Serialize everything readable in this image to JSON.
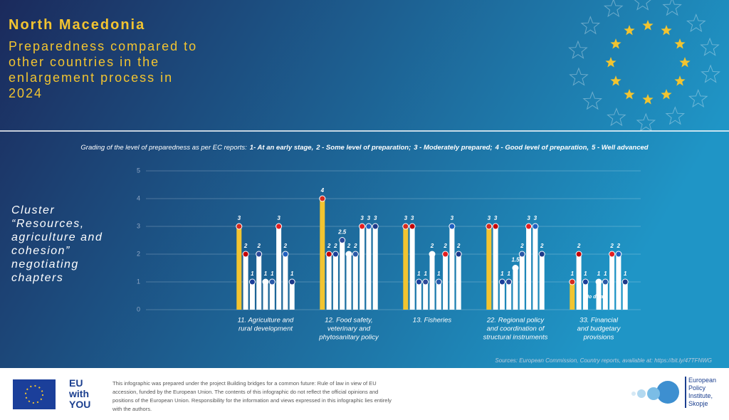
{
  "chart_data": {
    "type": "bar",
    "title": "North Macedonia",
    "subtitle": "Preparedness compared to other countries in the enlargement process in 2024",
    "grading_intro": "Grading of the level of preparedness as per EC reports:",
    "grades": [
      "1- At an early stage,",
      "2 - Some level of preparation;",
      "3 - Moderately prepared;",
      "4 - Good level of preparation,",
      "5 - Well advanced"
    ],
    "y_label": "Cluster “Resources, agriculture and cohesion” negotiating chapters",
    "categories": [
      [
        "11. Agriculture and",
        "rural development"
      ],
      [
        "12. Food safety,",
        "veterinary and",
        "phytosanitary policy"
      ],
      [
        "13. Fisheries"
      ],
      [
        "22. Regional policy",
        "and coordination of",
        "structural instruments"
      ],
      [
        "33. Financial",
        "and budgetary",
        "provisions"
      ]
    ],
    "series": [
      {
        "color": "#f2c430",
        "values": [
          3,
          4,
          3,
          3,
          1
        ]
      },
      {
        "color": "#ffffff",
        "values": [
          2,
          2,
          3,
          3,
          2
        ]
      },
      {
        "color": "#ffffff",
        "values": [
          1,
          2,
          1,
          1,
          1
        ]
      },
      {
        "color": "#ffffff",
        "values": [
          2,
          2.5,
          1,
          1,
          null
        ]
      },
      {
        "color": "#ffffff",
        "values": [
          1,
          2,
          2,
          1.5,
          1
        ]
      },
      {
        "color": "#ffffff",
        "values": [
          1,
          2,
          1,
          2,
          1
        ]
      },
      {
        "color": "#ffffff",
        "values": [
          3,
          3,
          2,
          3,
          2
        ]
      },
      {
        "color": "#ffffff",
        "values": [
          2,
          3,
          3,
          3,
          2
        ]
      },
      {
        "color": "#ffffff",
        "values": [
          1,
          3,
          2,
          2,
          1
        ]
      }
    ],
    "annotations": [
      "No data"
    ],
    "ylim": [
      0,
      5
    ],
    "yticks": [
      0,
      1,
      2,
      3,
      4,
      5
    ],
    "grid": true,
    "sources": "Sources: European Commission, Country reports, available at: https://bit.ly/47TFNWG"
  },
  "footer": {
    "disclaimer": "This infographic was prepared under the project Building bridges for a common future: Rule of law in view of EU accession, funded by the European Union. The contents of this infographic do not reflect the official opinions and positions of the European Union. Responsibility for the information and views expressed in this infographic lies entirely with the authors.",
    "eu_logo": "EU with YOU",
    "institute": "European Policy Institute, Skopje"
  }
}
